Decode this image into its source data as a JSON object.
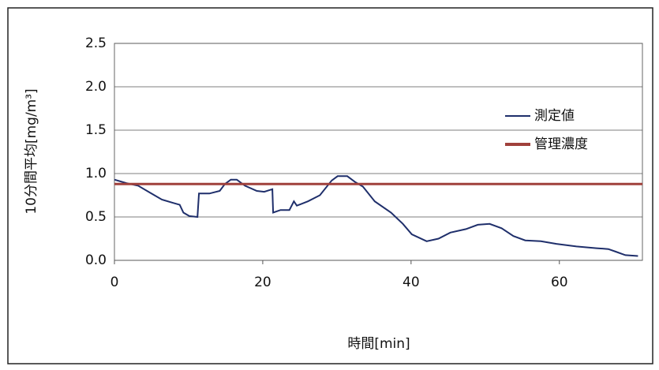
{
  "chart_data": {
    "type": "line",
    "xlabel": "時間[min]",
    "ylabel": "10分間平均[mg/m³]",
    "xlim": [
      0,
      71.2
    ],
    "xticks": [
      0,
      20,
      40,
      60
    ],
    "ylim": [
      0,
      2.5
    ],
    "yticks": [
      {
        "value": 0,
        "label": "0.0"
      },
      0.5,
      {
        "value": 1,
        "label": "1.0"
      },
      1.5,
      {
        "value": 2,
        "label": "2.0"
      },
      2.5
    ],
    "grid": true,
    "legend": "upper right",
    "series": [
      {
        "name": "測定値",
        "color": "#1f2f6b",
        "x": [
          0,
          1.6,
          3.2,
          4.8,
          6.4,
          8,
          8.8,
          9.3,
          10.1,
          11.2,
          11.4,
          12.8,
          14.2,
          14.9,
          15.7,
          16.5,
          17.6,
          19.2,
          20.2,
          21.3,
          21.4,
          22.4,
          23.6,
          24.2,
          24.6,
          26.1,
          27.7,
          29.3,
          30.1,
          31.4,
          32.5,
          33.5,
          35.1,
          37.3,
          38.9,
          40.1,
          42.1,
          43.7,
          45.3,
          47.4,
          49,
          50.6,
          52.2,
          53.8,
          55.4,
          57.5,
          59.6,
          62.3,
          65,
          66.6,
          67.6,
          68.9,
          70.6
        ],
        "values": [
          0.93,
          0.89,
          0.86,
          0.78,
          0.7,
          0.66,
          0.64,
          0.55,
          0.51,
          0.5,
          0.77,
          0.77,
          0.8,
          0.88,
          0.93,
          0.93,
          0.86,
          0.8,
          0.79,
          0.82,
          0.55,
          0.58,
          0.58,
          0.68,
          0.63,
          0.68,
          0.75,
          0.92,
          0.97,
          0.97,
          0.9,
          0.85,
          0.68,
          0.55,
          0.42,
          0.3,
          0.22,
          0.25,
          0.32,
          0.36,
          0.41,
          0.42,
          0.37,
          0.28,
          0.23,
          0.22,
          0.19,
          0.16,
          0.14,
          0.13,
          0.1,
          0.06,
          0.05
        ]
      },
      {
        "name": "管理濃度",
        "color": "#a0413c",
        "x": [
          0,
          71.2
        ],
        "values": [
          0.88,
          0.88
        ]
      }
    ]
  }
}
